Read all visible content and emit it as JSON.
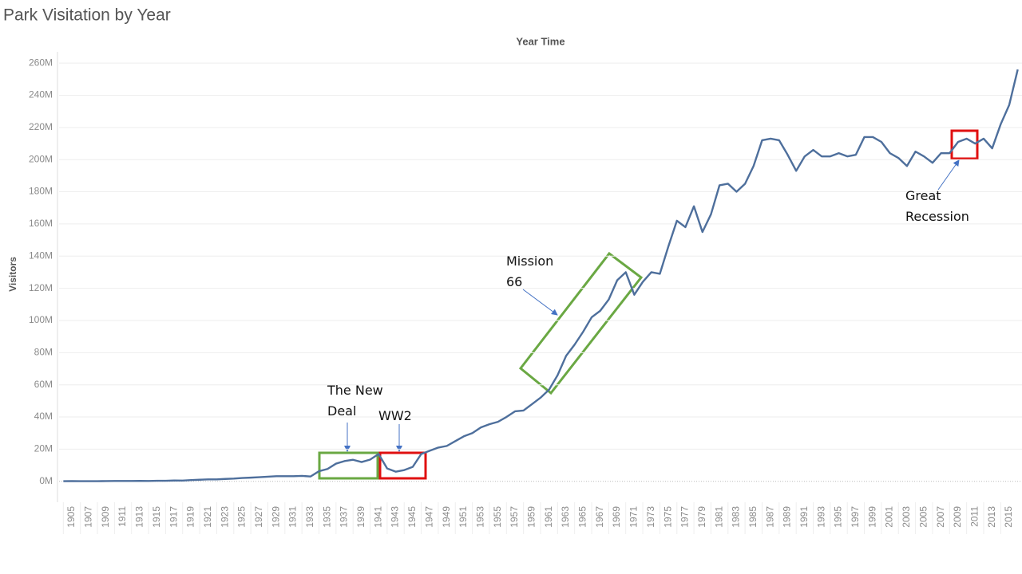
{
  "chart_data": {
    "type": "line",
    "title": "Park Visitation by Year",
    "x_header": "Year Time",
    "y_label": "Visitors",
    "x": [
      1904,
      1905,
      1906,
      1907,
      1908,
      1909,
      1910,
      1911,
      1912,
      1913,
      1914,
      1915,
      1916,
      1917,
      1918,
      1919,
      1920,
      1921,
      1922,
      1923,
      1924,
      1925,
      1926,
      1927,
      1928,
      1929,
      1930,
      1931,
      1932,
      1933,
      1934,
      1935,
      1936,
      1937,
      1938,
      1939,
      1940,
      1941,
      1942,
      1943,
      1944,
      1945,
      1946,
      1947,
      1948,
      1949,
      1950,
      1951,
      1952,
      1953,
      1954,
      1955,
      1956,
      1957,
      1958,
      1959,
      1960,
      1961,
      1962,
      1963,
      1964,
      1965,
      1966,
      1967,
      1968,
      1969,
      1970,
      1971,
      1972,
      1973,
      1974,
      1975,
      1976,
      1977,
      1978,
      1979,
      1980,
      1981,
      1982,
      1983,
      1984,
      1985,
      1986,
      1987,
      1988,
      1989,
      1990,
      1991,
      1992,
      1993,
      1994,
      1995,
      1996,
      1997,
      1998,
      1999,
      2000,
      2001,
      2002,
      2003,
      2004,
      2005,
      2006,
      2007,
      2008,
      2009,
      2010,
      2011,
      2012,
      2013,
      2014,
      2015,
      2016
    ],
    "series": [
      {
        "name": "Visitors",
        "color": "#4e6f9c",
        "values": [
          120000,
          140000,
          100000,
          100000,
          120000,
          150000,
          200000,
          220000,
          230000,
          250000,
          240000,
          330000,
          360000,
          500000,
          450000,
          800000,
          1000000,
          1200000,
          1200000,
          1500000,
          1700000,
          2100000,
          2300000,
          2600000,
          2900000,
          3200000,
          3200000,
          3200000,
          3400000,
          3000000,
          6300000,
          7700000,
          11000000,
          12600000,
          13400000,
          12000000,
          13500000,
          17000000,
          8000000,
          6000000,
          7000000,
          9000000,
          17000000,
          19000000,
          21000000,
          22000000,
          25000000,
          28000000,
          30000000,
          33500000,
          35500000,
          37000000,
          40000000,
          43500000,
          44000000,
          48000000,
          52000000,
          57000000,
          66000000,
          78000000,
          85000000,
          93000000,
          102000000,
          106000000,
          113000000,
          125000000,
          130000000,
          116000000,
          124000000,
          130000000,
          129000000,
          146000000,
          162000000,
          158000000,
          171000000,
          155000000,
          166000000,
          184000000,
          185000000,
          180000000,
          185000000,
          196000000,
          212000000,
          213000000,
          212000000,
          203000000,
          193000000,
          202000000,
          206000000,
          202000000,
          202000000,
          204000000,
          202000000,
          203000000,
          214000000,
          214000000,
          211000000,
          204000000,
          201000000,
          196000000,
          205000000,
          202000000,
          198000000,
          204000000,
          204000000,
          211000000,
          213000000,
          210000000,
          213000000,
          207000000,
          222000000,
          234000000,
          256000000
        ]
      }
    ],
    "xlim": [
      1903.5,
      2016.5
    ],
    "xticks": [
      1905,
      1907,
      1909,
      1911,
      1913,
      1915,
      1917,
      1919,
      1921,
      1923,
      1925,
      1927,
      1929,
      1931,
      1933,
      1935,
      1937,
      1939,
      1941,
      1943,
      1945,
      1947,
      1949,
      1951,
      1953,
      1955,
      1957,
      1959,
      1961,
      1963,
      1965,
      1967,
      1969,
      1971,
      1973,
      1975,
      1977,
      1979,
      1981,
      1983,
      1985,
      1987,
      1989,
      1991,
      1993,
      1995,
      1997,
      1999,
      2001,
      2003,
      2005,
      2007,
      2009,
      2011,
      2013,
      2015
    ],
    "ylim": [
      -13000000,
      267000000
    ],
    "yticks": [
      {
        "value": 0,
        "label": "0M"
      },
      {
        "value": 20000000,
        "label": "20M"
      },
      {
        "value": 40000000,
        "label": "40M"
      },
      {
        "value": 60000000,
        "label": "60M"
      },
      {
        "value": 80000000,
        "label": "80M"
      },
      {
        "value": 100000000,
        "label": "100M"
      },
      {
        "value": 120000000,
        "label": "120M"
      },
      {
        "value": 140000000,
        "label": "140M"
      },
      {
        "value": 160000000,
        "label": "160M"
      },
      {
        "value": 180000000,
        "label": "180M"
      },
      {
        "value": 200000000,
        "label": "200M"
      },
      {
        "value": 220000000,
        "label": "220M"
      },
      {
        "value": 240000000,
        "label": "240M"
      },
      {
        "value": 260000000,
        "label": "260M"
      }
    ],
    "grid": true,
    "annotations": [
      "The New Deal",
      "WW2",
      "Mission 66",
      "Great Recession"
    ]
  }
}
